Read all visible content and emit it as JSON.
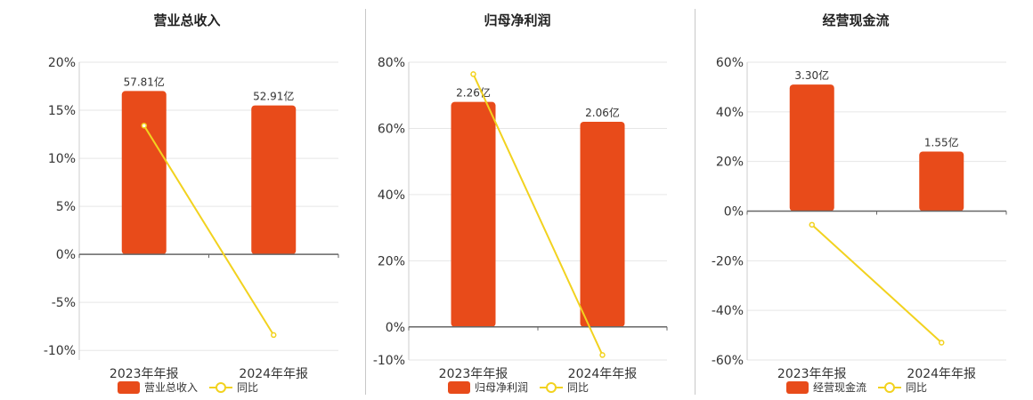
{
  "colors": {
    "bar": "#E84B1A",
    "line": "#F2D21F",
    "axis": "#666666",
    "grid": "#E6E6E6",
    "text": "#333333"
  },
  "chart_data": [
    {
      "type": "bar",
      "title": "营业总收入",
      "categories": [
        "2023年年报",
        "2024年年报"
      ],
      "series": [
        {
          "name": "营业总收入",
          "kind": "bar",
          "values": [
            17.0,
            15.5
          ],
          "labels": [
            "57.81亿",
            "52.91亿"
          ]
        },
        {
          "name": "同比",
          "kind": "line",
          "values": [
            13.4,
            -8.4
          ]
        }
      ],
      "ylim": [
        -11,
        20
      ],
      "yticks": [
        20,
        15,
        10,
        5,
        0,
        -5,
        -10
      ],
      "ytick_labels": [
        "20%",
        "15%",
        "10%",
        "5%",
        "0%",
        "-5%",
        "-10%"
      ],
      "grid": true,
      "legend_position": "bottom"
    },
    {
      "type": "bar",
      "title": "归母净利润",
      "categories": [
        "2023年年报",
        "2024年年报"
      ],
      "series": [
        {
          "name": "归母净利润",
          "kind": "bar",
          "values": [
            68,
            62
          ],
          "labels": [
            "2.26亿",
            "2.06亿"
          ]
        },
        {
          "name": "同比",
          "kind": "line",
          "values": [
            76.4,
            -8.5
          ]
        }
      ],
      "ylim": [
        -10,
        80
      ],
      "yticks": [
        80,
        60,
        40,
        20,
        0,
        -10
      ],
      "ytick_labels": [
        "80%",
        "60%",
        "40%",
        "20%",
        "0%",
        "-10%"
      ],
      "grid": true,
      "legend_position": "bottom"
    },
    {
      "type": "bar",
      "title": "经营现金流",
      "categories": [
        "2023年年报",
        "2024年年报"
      ],
      "series": [
        {
          "name": "经营现金流",
          "kind": "bar",
          "values": [
            51,
            24
          ],
          "labels": [
            "3.30亿",
            "1.55亿"
          ]
        },
        {
          "name": "同比",
          "kind": "line",
          "values": [
            -5.5,
            -53
          ]
        }
      ],
      "ylim": [
        -60,
        60
      ],
      "yticks": [
        60,
        40,
        20,
        0,
        -20,
        -40,
        -60
      ],
      "ytick_labels": [
        "60%",
        "40%",
        "20%",
        "0%",
        "-20%",
        "-40%",
        "-60%"
      ],
      "grid": true,
      "legend_position": "bottom"
    }
  ]
}
